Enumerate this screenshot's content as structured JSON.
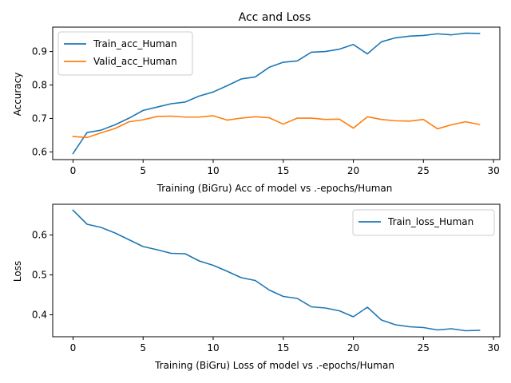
{
  "chart_data": [
    {
      "type": "line",
      "title": "Acc and Loss",
      "xlabel": "Training (BiGru) Acc of model vs .-epochs/Human",
      "ylabel": "Accuracy",
      "xlim": [
        -1.45,
        30.45
      ],
      "ylim": [
        0.577,
        0.973
      ],
      "xticks": [
        0,
        5,
        10,
        15,
        20,
        25,
        30
      ],
      "xtick_labels": [
        "0",
        "5",
        "10",
        "15",
        "20",
        "25",
        "30"
      ],
      "yticks": [
        0.6,
        0.7,
        0.8,
        0.9
      ],
      "ytick_labels": [
        "0.6",
        "0.7",
        "0.8",
        "0.9"
      ],
      "grid": false,
      "legend": "upper-left",
      "x": [
        0,
        1,
        2,
        3,
        4,
        5,
        6,
        7,
        8,
        9,
        10,
        11,
        12,
        13,
        14,
        15,
        16,
        17,
        18,
        19,
        20,
        21,
        22,
        23,
        24,
        25,
        26,
        27,
        28,
        29
      ],
      "series": [
        {
          "name": "Train_acc_Human",
          "color": "#1f77b4",
          "values": [
            0.595,
            0.658,
            0.665,
            0.681,
            0.701,
            0.724,
            0.734,
            0.744,
            0.749,
            0.767,
            0.779,
            0.798,
            0.818,
            0.824,
            0.853,
            0.868,
            0.872,
            0.898,
            0.9,
            0.907,
            0.921,
            0.893,
            0.929,
            0.941,
            0.946,
            0.948,
            0.953,
            0.95,
            0.955,
            0.954
          ]
        },
        {
          "name": "Valid_acc_Human",
          "color": "#ff7f0e",
          "values": [
            0.646,
            0.643,
            0.657,
            0.67,
            0.69,
            0.696,
            0.706,
            0.707,
            0.704,
            0.704,
            0.708,
            0.695,
            0.701,
            0.705,
            0.702,
            0.683,
            0.701,
            0.701,
            0.697,
            0.698,
            0.671,
            0.705,
            0.697,
            0.693,
            0.692,
            0.697,
            0.669,
            0.681,
            0.69,
            0.682
          ]
        }
      ]
    },
    {
      "type": "line",
      "title": "",
      "xlabel": "Training (BiGru) Loss of model vs .-epochs/Human",
      "ylabel": "Loss",
      "xlim": [
        -1.45,
        30.45
      ],
      "ylim": [
        0.345,
        0.677
      ],
      "xticks": [
        0,
        5,
        10,
        15,
        20,
        25,
        30
      ],
      "xtick_labels": [
        "0",
        "5",
        "10",
        "15",
        "20",
        "25",
        "30"
      ],
      "yticks": [
        0.4,
        0.5,
        0.6
      ],
      "ytick_labels": [
        "0.4",
        "0.5",
        "0.6"
      ],
      "grid": false,
      "legend": "upper-right",
      "x": [
        0,
        1,
        2,
        3,
        4,
        5,
        6,
        7,
        8,
        9,
        10,
        11,
        12,
        13,
        14,
        15,
        16,
        17,
        18,
        19,
        20,
        21,
        22,
        23,
        24,
        25,
        26,
        27,
        28,
        29
      ],
      "series": [
        {
          "name": "Train_loss_Human",
          "color": "#1f77b4",
          "values": [
            0.662,
            0.627,
            0.619,
            0.605,
            0.588,
            0.571,
            0.563,
            0.554,
            0.553,
            0.535,
            0.524,
            0.509,
            0.493,
            0.486,
            0.462,
            0.446,
            0.441,
            0.42,
            0.417,
            0.41,
            0.395,
            0.419,
            0.387,
            0.375,
            0.37,
            0.368,
            0.362,
            0.365,
            0.36,
            0.361
          ]
        }
      ]
    }
  ]
}
